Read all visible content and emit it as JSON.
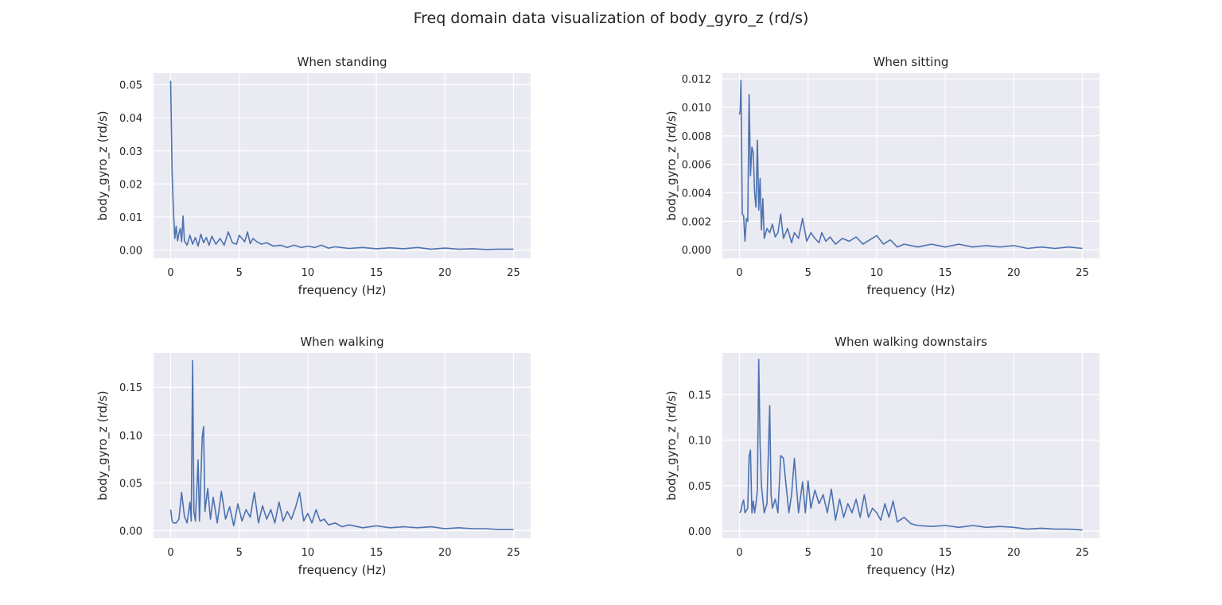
{
  "figure": {
    "title": "Freq domain data visualization of body_gyro_z (rd/s)"
  },
  "colors": {
    "line": "#4c72b0",
    "panel_bg": "#eaeaf2",
    "grid": "#ffffff",
    "text": "#262626"
  },
  "chart_data": [
    {
      "type": "line",
      "title": "When standing",
      "xlabel": "frequency (Hz)",
      "ylabel": "body_gyro_z (rd/s)",
      "xlim": [
        -1.25,
        26.25
      ],
      "ylim": [
        -0.0025,
        0.0535
      ],
      "xticks": [
        0,
        5,
        10,
        15,
        20,
        25
      ],
      "yticks": [
        0.0,
        0.01,
        0.02,
        0.03,
        0.04,
        0.05
      ],
      "ytick_labels": [
        "0.00",
        "0.01",
        "0.02",
        "0.03",
        "0.04",
        "0.05"
      ],
      "grid": true,
      "series": [
        {
          "x": [
            0,
            0.1,
            0.2,
            0.3,
            0.4,
            0.5,
            0.6,
            0.7,
            0.8,
            0.9,
            1.0,
            1.2,
            1.4,
            1.6,
            1.8,
            2.0,
            2.2,
            2.4,
            2.6,
            2.8,
            3.0,
            3.3,
            3.6,
            3.9,
            4.2,
            4.5,
            4.8,
            5.0,
            5.2,
            5.4,
            5.6,
            5.8,
            6.0,
            6.3,
            6.6,
            7.0,
            7.5,
            8.0,
            8.5,
            9.0,
            9.5,
            10.0,
            10.5,
            11.0,
            11.5,
            12.0,
            13.0,
            14.0,
            15.0,
            16.0,
            17.0,
            18.0,
            19.0,
            20.0,
            21.0,
            22.0,
            23.0,
            24.0,
            25.0
          ],
          "y": [
            0.0512,
            0.0235,
            0.012,
            0.0035,
            0.0072,
            0.0028,
            0.005,
            0.0065,
            0.0025,
            0.0103,
            0.0028,
            0.0015,
            0.0045,
            0.0018,
            0.0038,
            0.0012,
            0.0048,
            0.0022,
            0.0038,
            0.0015,
            0.0042,
            0.0018,
            0.0035,
            0.0015,
            0.0055,
            0.0022,
            0.0018,
            0.0045,
            0.0035,
            0.0025,
            0.0055,
            0.002,
            0.0035,
            0.0025,
            0.0018,
            0.0022,
            0.0012,
            0.0015,
            0.0008,
            0.0015,
            0.0008,
            0.0012,
            0.0008,
            0.0015,
            0.0006,
            0.001,
            0.0005,
            0.0008,
            0.0004,
            0.0007,
            0.0004,
            0.0008,
            0.0003,
            0.0006,
            0.0003,
            0.0004,
            0.0002,
            0.0003,
            0.0003
          ]
        }
      ]
    },
    {
      "type": "line",
      "title": "When sitting",
      "xlabel": "frequency (Hz)",
      "ylabel": "body_gyro_z (rd/s)",
      "xlim": [
        -1.25,
        26.25
      ],
      "ylim": [
        -0.0006,
        0.0124
      ],
      "xticks": [
        0,
        5,
        10,
        15,
        20,
        25
      ],
      "yticks": [
        0.0,
        0.002,
        0.004,
        0.006,
        0.008,
        0.01,
        0.012
      ],
      "ytick_labels": [
        "0.000",
        "0.002",
        "0.004",
        "0.006",
        "0.008",
        "0.010",
        "0.012"
      ],
      "grid": true,
      "series": [
        {
          "x": [
            0,
            0.05,
            0.1,
            0.2,
            0.3,
            0.4,
            0.5,
            0.6,
            0.7,
            0.8,
            0.9,
            1.0,
            1.1,
            1.2,
            1.3,
            1.4,
            1.5,
            1.6,
            1.7,
            1.8,
            2.0,
            2.2,
            2.4,
            2.6,
            2.8,
            3.0,
            3.2,
            3.5,
            3.8,
            4.0,
            4.3,
            4.6,
            4.9,
            5.2,
            5.5,
            5.8,
            6.0,
            6.3,
            6.6,
            7.0,
            7.5,
            8.0,
            8.5,
            9.0,
            9.5,
            10.0,
            10.5,
            11.0,
            11.5,
            12.0,
            13.0,
            14.0,
            15.0,
            16.0,
            17.0,
            18.0,
            19.0,
            20.0,
            21.0,
            22.0,
            23.0,
            24.0,
            25.0
          ],
          "y": [
            0.0095,
            0.0098,
            0.0119,
            0.0025,
            0.0024,
            0.0006,
            0.0022,
            0.002,
            0.0109,
            0.0052,
            0.0072,
            0.0068,
            0.004,
            0.003,
            0.0077,
            0.0028,
            0.005,
            0.0014,
            0.0036,
            0.0008,
            0.0015,
            0.0012,
            0.0018,
            0.0009,
            0.0012,
            0.0025,
            0.0008,
            0.0015,
            0.0005,
            0.0012,
            0.0008,
            0.0022,
            0.0006,
            0.0012,
            0.0008,
            0.0005,
            0.0012,
            0.0006,
            0.0009,
            0.0004,
            0.0008,
            0.0006,
            0.0009,
            0.0004,
            0.0007,
            0.001,
            0.0004,
            0.0007,
            0.0002,
            0.0004,
            0.0002,
            0.0004,
            0.0002,
            0.0004,
            0.0002,
            0.0003,
            0.0002,
            0.0003,
            0.0001,
            0.0002,
            0.0001,
            0.0002,
            0.0001
          ]
        }
      ]
    },
    {
      "type": "line",
      "title": "When walking",
      "xlabel": "frequency (Hz)",
      "ylabel": "body_gyro_z (rd/s)",
      "xlim": [
        -1.25,
        26.25
      ],
      "ylim": [
        -0.008,
        0.186
      ],
      "xticks": [
        0,
        5,
        10,
        15,
        20,
        25
      ],
      "yticks": [
        0.0,
        0.05,
        0.1,
        0.15
      ],
      "ytick_labels": [
        "0.00",
        "0.05",
        "0.10",
        "0.15"
      ],
      "grid": true,
      "series": [
        {
          "x": [
            0,
            0.1,
            0.2,
            0.4,
            0.6,
            0.8,
            1.0,
            1.2,
            1.4,
            1.5,
            1.6,
            1.7,
            1.8,
            2.0,
            2.1,
            2.3,
            2.4,
            2.5,
            2.7,
            2.9,
            3.1,
            3.4,
            3.7,
            4.0,
            4.3,
            4.6,
            4.9,
            5.2,
            5.5,
            5.8,
            6.1,
            6.4,
            6.7,
            7.0,
            7.3,
            7.6,
            7.9,
            8.2,
            8.5,
            8.8,
            9.1,
            9.4,
            9.7,
            10.0,
            10.3,
            10.6,
            10.9,
            11.2,
            11.5,
            12.0,
            12.5,
            13.0,
            14.0,
            15.0,
            16.0,
            17.0,
            18.0,
            19.0,
            20.0,
            21.0,
            22.0,
            23.0,
            24.0,
            25.0
          ],
          "y": [
            0.022,
            0.01,
            0.008,
            0.008,
            0.012,
            0.04,
            0.015,
            0.008,
            0.03,
            0.01,
            0.178,
            0.02,
            0.01,
            0.074,
            0.01,
            0.098,
            0.109,
            0.02,
            0.044,
            0.012,
            0.035,
            0.008,
            0.041,
            0.012,
            0.025,
            0.005,
            0.028,
            0.01,
            0.022,
            0.014,
            0.04,
            0.008,
            0.026,
            0.012,
            0.022,
            0.008,
            0.03,
            0.01,
            0.02,
            0.012,
            0.024,
            0.04,
            0.01,
            0.018,
            0.008,
            0.022,
            0.01,
            0.012,
            0.006,
            0.008,
            0.004,
            0.006,
            0.003,
            0.005,
            0.003,
            0.004,
            0.003,
            0.004,
            0.002,
            0.003,
            0.002,
            0.002,
            0.001,
            0.001
          ]
        }
      ]
    },
    {
      "type": "line",
      "title": "When walking downstairs",
      "xlabel": "frequency (Hz)",
      "ylabel": "body_gyro_z (rd/s)",
      "xlim": [
        -1.25,
        26.25
      ],
      "ylim": [
        -0.008,
        0.196
      ],
      "xticks": [
        0,
        5,
        10,
        15,
        20,
        25
      ],
      "yticks": [
        0.0,
        0.05,
        0.1,
        0.15
      ],
      "ytick_labels": [
        "0.00",
        "0.05",
        "0.10",
        "0.15"
      ],
      "grid": true,
      "series": [
        {
          "x": [
            0,
            0.1,
            0.2,
            0.3,
            0.4,
            0.6,
            0.7,
            0.8,
            0.9,
            1.0,
            1.1,
            1.2,
            1.3,
            1.4,
            1.5,
            1.6,
            1.7,
            1.8,
            2.0,
            2.2,
            2.3,
            2.4,
            2.6,
            2.8,
            3.0,
            3.2,
            3.4,
            3.6,
            3.8,
            4.0,
            4.3,
            4.6,
            4.8,
            5.0,
            5.2,
            5.5,
            5.8,
            6.1,
            6.4,
            6.7,
            7.0,
            7.3,
            7.6,
            7.9,
            8.2,
            8.5,
            8.8,
            9.1,
            9.4,
            9.7,
            10.0,
            10.3,
            10.6,
            10.9,
            11.2,
            11.5,
            12.0,
            12.5,
            13.0,
            14.0,
            15.0,
            16.0,
            17.0,
            18.0,
            19.0,
            20.0,
            21.0,
            22.0,
            23.0,
            24.0,
            25.0
          ],
          "y": [
            0.02,
            0.022,
            0.03,
            0.034,
            0.02,
            0.025,
            0.082,
            0.089,
            0.02,
            0.033,
            0.02,
            0.03,
            0.045,
            0.189,
            0.095,
            0.05,
            0.035,
            0.02,
            0.03,
            0.138,
            0.04,
            0.025,
            0.035,
            0.02,
            0.083,
            0.08,
            0.05,
            0.02,
            0.04,
            0.08,
            0.02,
            0.054,
            0.02,
            0.055,
            0.025,
            0.045,
            0.03,
            0.04,
            0.02,
            0.046,
            0.012,
            0.035,
            0.015,
            0.03,
            0.02,
            0.035,
            0.015,
            0.04,
            0.015,
            0.025,
            0.02,
            0.012,
            0.03,
            0.015,
            0.033,
            0.01,
            0.015,
            0.008,
            0.006,
            0.005,
            0.006,
            0.004,
            0.006,
            0.004,
            0.005,
            0.004,
            0.002,
            0.003,
            0.002,
            0.002,
            0.001
          ]
        }
      ]
    }
  ]
}
